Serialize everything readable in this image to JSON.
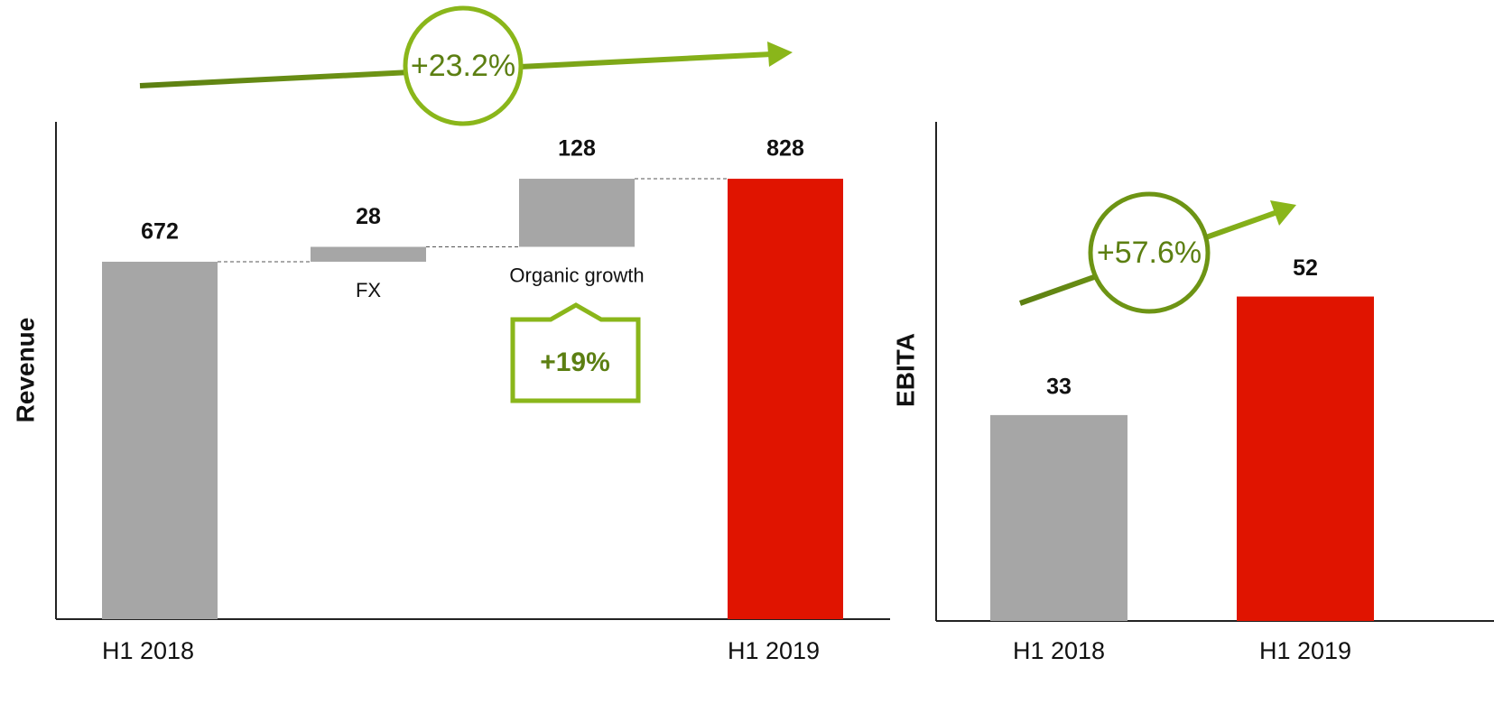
{
  "chart_data": [
    {
      "type": "waterfall",
      "y_label": "Revenue",
      "categories": [
        "H1 2018",
        "FX",
        "Organic growth",
        "H1 2019"
      ],
      "values": [
        672,
        28,
        128,
        828
      ],
      "measures": [
        "absolute",
        "relative",
        "relative",
        "total"
      ],
      "colors": [
        "#a6a6a6",
        "#a6a6a6",
        "#a6a6a6",
        "#e01400"
      ],
      "ylim": [
        0,
        935
      ],
      "annotations": [
        "+23.2%",
        "+19%"
      ]
    },
    {
      "type": "bar",
      "y_label": "EBITA",
      "categories": [
        "H1 2018",
        "H1 2019"
      ],
      "values": [
        33,
        52
      ],
      "colors": [
        "#a6a6a6",
        "#e01400"
      ],
      "ylim": [
        0,
        80
      ],
      "annotations": [
        "+57.6%"
      ]
    }
  ]
}
